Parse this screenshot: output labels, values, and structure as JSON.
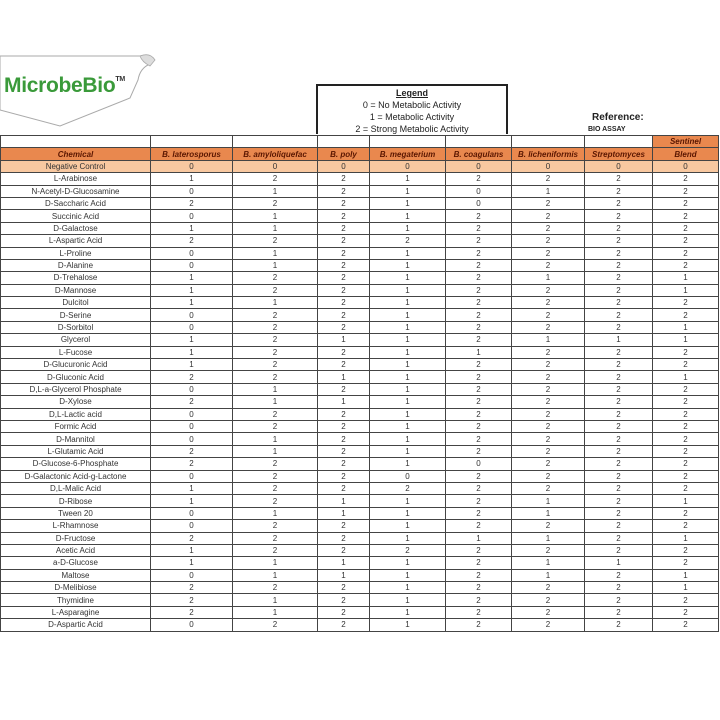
{
  "logo": {
    "name": "MicrobeBio",
    "tm": "TM"
  },
  "legend": {
    "title": "Legend",
    "items": [
      "0 = No Metabolic Activity",
      "1 = Metabolic Activity",
      "2 = Strong Metabolic Activity"
    ]
  },
  "reference": {
    "label": "Reference:",
    "value": "BIO ASSAY"
  },
  "colors": {
    "header": "#e9884e",
    "negative_control": "#f8c8a0",
    "logo_green": "#3a9a3a"
  },
  "table": {
    "sentinel_label": "Sentinel",
    "columns": [
      "Chemical",
      "B. laterosporus",
      "B. amyloliquefac",
      "B. poly",
      "B. megaterium",
      "B. coagulans",
      "B. licheniformis",
      "Streptomyces",
      "Blend"
    ],
    "rows": [
      [
        "Negative Control",
        0,
        0,
        0,
        0,
        0,
        0,
        0,
        0
      ],
      [
        "L-Arabinose",
        1,
        2,
        2,
        1,
        2,
        2,
        2,
        2
      ],
      [
        "N-Acetyl-D-Glucosamine",
        0,
        1,
        2,
        1,
        0,
        1,
        2,
        2
      ],
      [
        "D-Saccharic Acid",
        2,
        2,
        2,
        1,
        0,
        2,
        2,
        2
      ],
      [
        "Succinic Acid",
        0,
        1,
        2,
        1,
        2,
        2,
        2,
        2
      ],
      [
        "D-Galactose",
        1,
        1,
        2,
        1,
        2,
        2,
        2,
        2
      ],
      [
        "L-Aspartic Acid",
        2,
        2,
        2,
        2,
        2,
        2,
        2,
        2
      ],
      [
        "L-Proline",
        0,
        1,
        2,
        1,
        2,
        2,
        2,
        2
      ],
      [
        "D-Alanine",
        0,
        1,
        2,
        1,
        2,
        2,
        2,
        2
      ],
      [
        "D-Trehalose",
        1,
        2,
        2,
        1,
        2,
        1,
        2,
        1
      ],
      [
        "D-Mannose",
        1,
        2,
        2,
        1,
        2,
        2,
        2,
        1
      ],
      [
        "Dulcitol",
        1,
        1,
        2,
        1,
        2,
        2,
        2,
        2
      ],
      [
        "D-Serine",
        0,
        2,
        2,
        1,
        2,
        2,
        2,
        2
      ],
      [
        "D-Sorbitol",
        0,
        2,
        2,
        1,
        2,
        2,
        2,
        1
      ],
      [
        "Glycerol",
        1,
        2,
        1,
        1,
        2,
        1,
        1,
        1
      ],
      [
        "L-Fucose",
        1,
        2,
        2,
        1,
        1,
        2,
        2,
        2
      ],
      [
        "D-Glucuronic Acid",
        1,
        2,
        2,
        1,
        2,
        2,
        2,
        2
      ],
      [
        "D-Gluconic Acid",
        2,
        2,
        1,
        1,
        2,
        2,
        2,
        1
      ],
      [
        "D,L-a-Glycerol Phosphate",
        0,
        1,
        2,
        1,
        2,
        2,
        2,
        2
      ],
      [
        "D-Xylose",
        2,
        1,
        1,
        1,
        2,
        2,
        2,
        2
      ],
      [
        "D,L-Lactic acid",
        0,
        2,
        2,
        1,
        2,
        2,
        2,
        2
      ],
      [
        "Formic Acid",
        0,
        2,
        2,
        1,
        2,
        2,
        2,
        2
      ],
      [
        "D-Mannitol",
        0,
        1,
        2,
        1,
        2,
        2,
        2,
        2
      ],
      [
        "L-Glutamic Acid",
        2,
        1,
        2,
        1,
        2,
        2,
        2,
        2
      ],
      [
        "D-Glucose-6-Phosphate",
        2,
        2,
        2,
        1,
        0,
        2,
        2,
        2
      ],
      [
        "D-Galactonic Acid-g-Lactone",
        0,
        2,
        2,
        0,
        2,
        2,
        2,
        2
      ],
      [
        "D,L-Malic Acid",
        1,
        2,
        2,
        2,
        2,
        2,
        2,
        2
      ],
      [
        "D-Ribose",
        1,
        2,
        1,
        1,
        2,
        1,
        2,
        1
      ],
      [
        "Tween 20",
        0,
        1,
        1,
        1,
        2,
        1,
        2,
        2
      ],
      [
        "L-Rhamnose",
        0,
        2,
        2,
        1,
        2,
        2,
        2,
        2
      ],
      [
        "D-Fructose",
        2,
        2,
        2,
        1,
        1,
        1,
        2,
        1
      ],
      [
        "Acetic Acid",
        1,
        2,
        2,
        2,
        2,
        2,
        2,
        2
      ],
      [
        "a-D-Glucose",
        1,
        1,
        1,
        1,
        2,
        1,
        1,
        2
      ],
      [
        "Maltose",
        0,
        1,
        1,
        1,
        2,
        1,
        2,
        1
      ],
      [
        "D-Melibiose",
        2,
        2,
        2,
        1,
        2,
        2,
        2,
        1
      ],
      [
        "Thymidine",
        2,
        1,
        2,
        1,
        2,
        2,
        2,
        2
      ],
      [
        "L-Asparagine",
        2,
        1,
        2,
        1,
        2,
        2,
        2,
        2
      ],
      [
        "D-Aspartic Acid",
        0,
        2,
        2,
        1,
        2,
        2,
        2,
        2
      ]
    ]
  }
}
